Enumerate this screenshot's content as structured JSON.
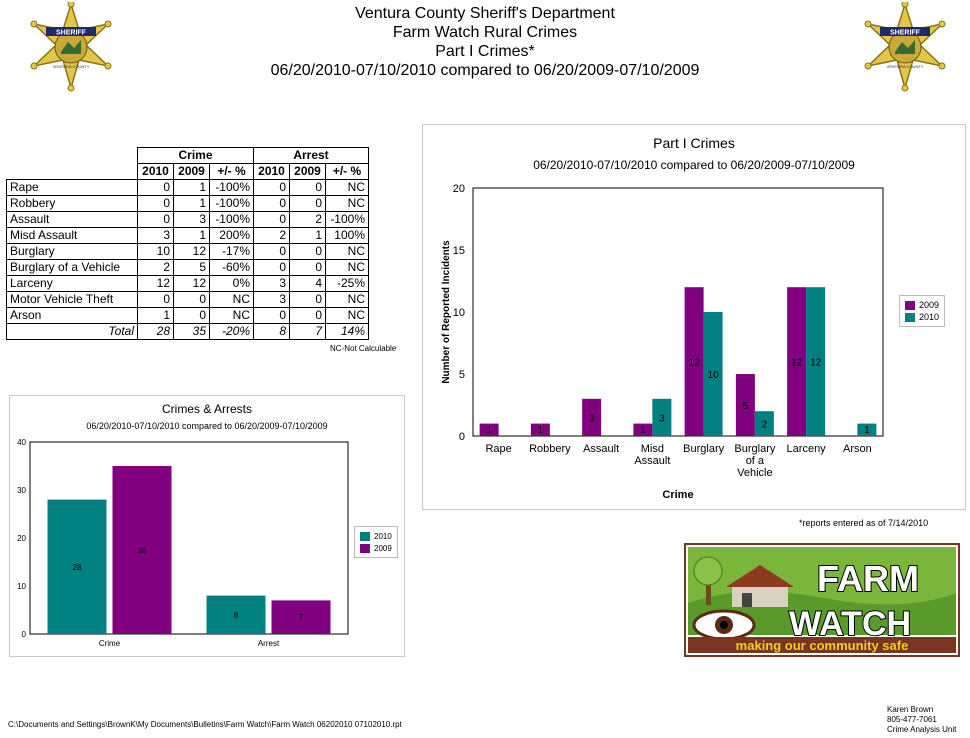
{
  "header": {
    "line1": "Ventura County Sheriff's Department",
    "line2": "Farm Watch Rural Crimes",
    "line3": "Part I Crimes*",
    "line4": "06/20/2010-07/10/2010 compared to 06/20/2009-07/10/2009"
  },
  "badge": {
    "top_text": "SHERIFF",
    "bottom_text": "VENTURA COUNTY"
  },
  "table": {
    "group_crime": "Crime",
    "group_arrest": "Arrest",
    "cols": [
      "2010",
      "2009",
      "+/- %",
      "2010",
      "2009",
      "+/- %"
    ],
    "rows": [
      {
        "label": "Rape",
        "c2010": "0",
        "c2009": "1",
        "cpct": "-100%",
        "a2010": "0",
        "a2009": "0",
        "apct": "NC"
      },
      {
        "label": "Robbery",
        "c2010": "0",
        "c2009": "1",
        "cpct": "-100%",
        "a2010": "0",
        "a2009": "0",
        "apct": "NC"
      },
      {
        "label": "Assault",
        "c2010": "0",
        "c2009": "3",
        "cpct": "-100%",
        "a2010": "0",
        "a2009": "2",
        "apct": "-100%"
      },
      {
        "label": "Misd  Assault",
        "c2010": "3",
        "c2009": "1",
        "cpct": "200%",
        "a2010": "2",
        "a2009": "1",
        "apct": "100%"
      },
      {
        "label": "Burglary",
        "c2010": "10",
        "c2009": "12",
        "cpct": "-17%",
        "a2010": "0",
        "a2009": "0",
        "apct": "NC"
      },
      {
        "label": "Burglary of a Vehicle",
        "c2010": "2",
        "c2009": "5",
        "cpct": "-60%",
        "a2010": "0",
        "a2009": "0",
        "apct": "NC"
      },
      {
        "label": "Larceny",
        "c2010": "12",
        "c2009": "12",
        "cpct": "0%",
        "a2010": "3",
        "a2009": "4",
        "apct": "-25%"
      },
      {
        "label": "Motor Vehicle Theft",
        "c2010": "0",
        "c2009": "0",
        "cpct": "NC",
        "a2010": "3",
        "a2009": "0",
        "apct": "NC"
      },
      {
        "label": "Arson",
        "c2010": "1",
        "c2009": "0",
        "cpct": "NC",
        "a2010": "0",
        "a2009": "0",
        "apct": "NC"
      }
    ],
    "total": {
      "label": "Total",
      "c2010": "28",
      "c2009": "35",
      "cpct": "-20%",
      "a2010": "8",
      "a2009": "7",
      "apct": "14%"
    },
    "nc_note": "NC-Not Calculable"
  },
  "chart_data": [
    {
      "type": "bar",
      "title": "Part I Crimes",
      "subtitle": "06/20/2010-07/10/2010 compared to 06/20/2009-07/10/2009",
      "xlabel": "Crime",
      "ylabel": "Number of Reported Incidents",
      "ylim": [
        0,
        20
      ],
      "yticks": [
        0,
        5,
        10,
        15,
        20
      ],
      "categories": [
        [
          "Rape"
        ],
        [
          "Robbery"
        ],
        [
          "Assault"
        ],
        [
          "Misd",
          "Assault"
        ],
        [
          "Burglary"
        ],
        [
          "Burglary",
          "of a",
          "Vehicle"
        ],
        [
          "Larceny"
        ],
        [
          "Arson"
        ]
      ],
      "series": [
        {
          "name": "2009",
          "color": "#800080",
          "values": [
            1,
            1,
            3,
            1,
            12,
            5,
            12,
            0
          ]
        },
        {
          "name": "2010",
          "color": "#008080",
          "values": [
            0,
            0,
            0,
            3,
            10,
            2,
            12,
            1
          ]
        }
      ],
      "legend": "right"
    },
    {
      "type": "bar",
      "title": "Crimes & Arrests",
      "subtitle": "06/20/2010-07/10/2010 compared to 06/20/2009-07/10/2009",
      "ylim": [
        0,
        40
      ],
      "yticks": [
        0,
        10,
        20,
        30,
        40
      ],
      "categories": [
        "Crime",
        "Arrest"
      ],
      "series": [
        {
          "name": "2010",
          "color": "#008080",
          "values": [
            28,
            8
          ]
        },
        {
          "name": "2009",
          "color": "#800080",
          "values": [
            35,
            7
          ]
        }
      ],
      "legend": "right"
    }
  ],
  "footnote": "*reports entered as of 7/14/2010",
  "logo": {
    "line1": "FARM",
    "line2": "WATCH",
    "tagline": "making our community safe"
  },
  "footer": {
    "path": "C:\\Documents and Settings\\BrownK\\My Documents\\Bulletins\\Farm Watch\\Farm Watch 06202010 07102010.rpt",
    "name": "Karen Brown",
    "phone": "805-477-7061",
    "unit": "Crime Analysis Unit"
  }
}
